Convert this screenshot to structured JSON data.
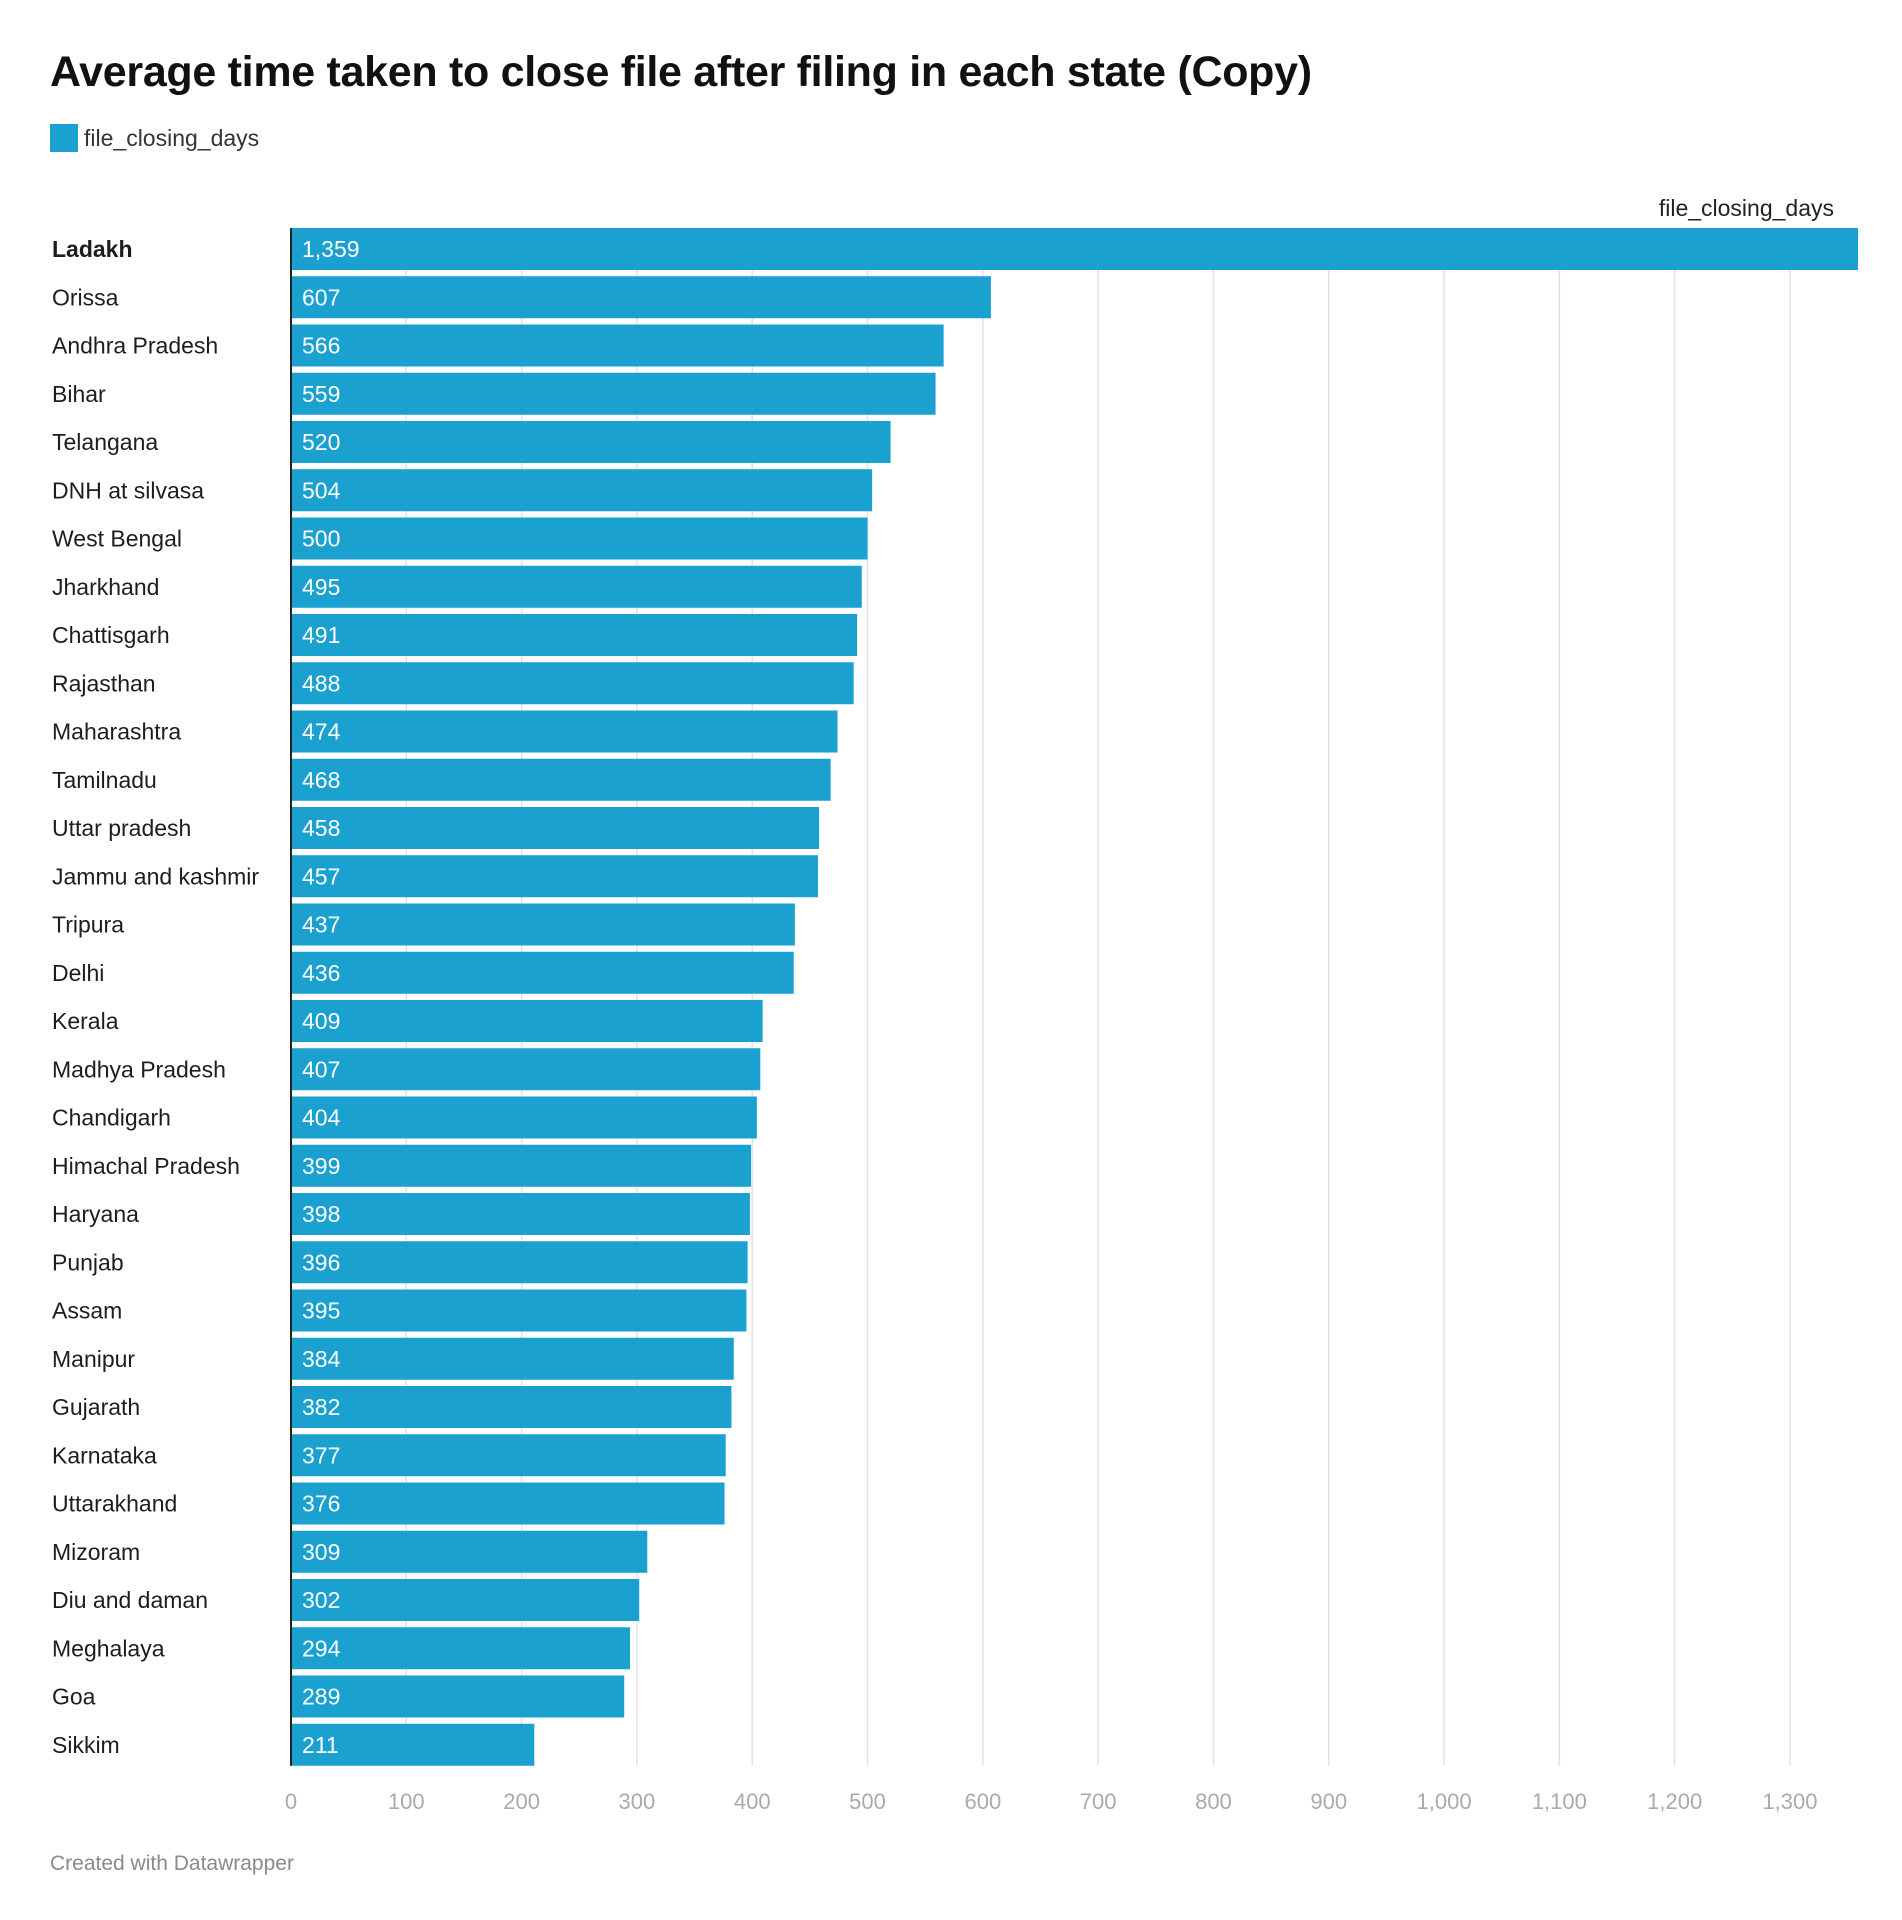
{
  "title": "Average time taken to close file after filing in each state (Copy)",
  "legend": {
    "label": "file_closing_days",
    "color": "#1aa1cf"
  },
  "footer": "Created with Datawrapper",
  "colors": {
    "bar": "#1aa1cf",
    "grid": "#e3e3e3",
    "axis": "#222222",
    "tick_text": "#aaaaaa",
    "bar_label": "#ffffff"
  },
  "chart_data": {
    "type": "bar",
    "orientation": "horizontal",
    "column_header": "file_closing_days",
    "xlim": [
      0,
      1359
    ],
    "x_ticks": [
      0,
      100,
      200,
      300,
      400,
      500,
      600,
      700,
      800,
      900,
      1000,
      1100,
      1200,
      1300
    ],
    "x_tick_labels": [
      "0",
      "100",
      "200",
      "300",
      "400",
      "500",
      "600",
      "700",
      "800",
      "900",
      "1,000",
      "1,100",
      "1,200",
      "1,300"
    ],
    "grid": true,
    "categories": [
      "Ladakh",
      "Orissa",
      "Andhra Pradesh",
      "Bihar",
      "Telangana",
      "DNH at silvasa",
      "West Bengal",
      "Jharkhand",
      "Chattisgarh",
      "Rajasthan",
      "Maharashtra",
      "Tamilnadu",
      "Uttar pradesh",
      "Jammu and kashmir",
      "Tripura",
      "Delhi",
      "Kerala",
      "Madhya Pradesh",
      "Chandigarh",
      "Himachal Pradesh",
      "Haryana",
      "Punjab",
      "Assam",
      "Manipur",
      "Gujarath",
      "Karnataka",
      "Uttarakhand",
      "Mizoram",
      "Diu and daman",
      "Meghalaya",
      "Goa",
      "Sikkim"
    ],
    "values": [
      1359,
      607,
      566,
      559,
      520,
      504,
      500,
      495,
      491,
      488,
      474,
      468,
      458,
      457,
      437,
      436,
      409,
      407,
      404,
      399,
      398,
      396,
      395,
      384,
      382,
      377,
      376,
      309,
      302,
      294,
      289,
      211
    ],
    "value_labels": [
      "1,359",
      "607",
      "566",
      "559",
      "520",
      "504",
      "500",
      "495",
      "491",
      "488",
      "474",
      "468",
      "458",
      "457",
      "437",
      "436",
      "409",
      "407",
      "404",
      "399",
      "398",
      "396",
      "395",
      "384",
      "382",
      "377",
      "376",
      "309",
      "302",
      "294",
      "289",
      "211"
    ],
    "highlight": [
      "Ladakh"
    ]
  }
}
